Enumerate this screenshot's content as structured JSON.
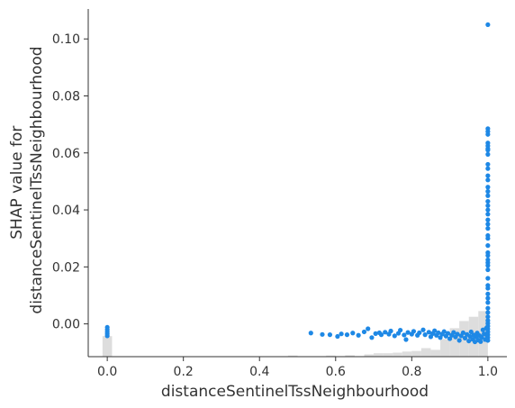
{
  "chart_data": {
    "type": "scatter",
    "title": "",
    "xlabel": "distanceSentinelTssNeighbourhood",
    "ylabel_lines": [
      "SHAP value for",
      "distanceSentinelTssNeighbourhood"
    ],
    "xlim": [
      -0.05,
      1.05
    ],
    "ylim": [
      -0.0115,
      0.1105
    ],
    "x_ticks": [
      0.0,
      0.2,
      0.4,
      0.6,
      0.8,
      1.0
    ],
    "x_tick_labels": [
      "0.0",
      "0.2",
      "0.4",
      "0.6",
      "0.8",
      "1.0"
    ],
    "y_ticks": [
      0.0,
      0.02,
      0.04,
      0.06,
      0.08,
      0.1
    ],
    "y_tick_labels": [
      "0.00",
      "0.02",
      "0.04",
      "0.06",
      "0.08",
      "0.10"
    ],
    "grid": false,
    "colors": {
      "points": "#1e88e5",
      "histogram": "#dddddd",
      "axes": "#333333"
    },
    "histogram": {
      "bin_width": 0.025,
      "bins": [
        {
          "x0": -0.0125,
          "height": 0.0072
        },
        {
          "x0": 0.475,
          "height": 0.0004
        },
        {
          "x0": 0.575,
          "height": 0.0004
        },
        {
          "x0": 0.625,
          "height": 0.0005
        },
        {
          "x0": 0.675,
          "height": 0.0008
        },
        {
          "x0": 0.7,
          "height": 0.0012
        },
        {
          "x0": 0.725,
          "height": 0.0012
        },
        {
          "x0": 0.75,
          "height": 0.0014
        },
        {
          "x0": 0.775,
          "height": 0.0018
        },
        {
          "x0": 0.8,
          "height": 0.002
        },
        {
          "x0": 0.825,
          "height": 0.003
        },
        {
          "x0": 0.85,
          "height": 0.0024
        },
        {
          "x0": 0.875,
          "height": 0.0062
        },
        {
          "x0": 0.9,
          "height": 0.01
        },
        {
          "x0": 0.925,
          "height": 0.0125
        },
        {
          "x0": 0.95,
          "height": 0.014
        },
        {
          "x0": 0.975,
          "height": 0.016
        }
      ]
    },
    "series": [
      {
        "points": [
          [
            0.0,
            -0.0012
          ],
          [
            0.0,
            -0.002
          ],
          [
            0.0,
            -0.0028
          ],
          [
            0.0,
            -0.0035
          ],
          [
            0.0,
            -0.0042
          ],
          [
            0.535,
            -0.0032
          ],
          [
            0.565,
            -0.0037
          ],
          [
            0.585,
            -0.0038
          ],
          [
            0.605,
            -0.0044
          ],
          [
            0.615,
            -0.0035
          ],
          [
            0.63,
            -0.0038
          ],
          [
            0.645,
            -0.0032
          ],
          [
            0.66,
            -0.004
          ],
          [
            0.675,
            -0.0028
          ],
          [
            0.685,
            -0.0017
          ],
          [
            0.695,
            -0.0048
          ],
          [
            0.705,
            -0.0034
          ],
          [
            0.715,
            -0.0031
          ],
          [
            0.72,
            -0.0038
          ],
          [
            0.73,
            -0.0029
          ],
          [
            0.74,
            -0.0036
          ],
          [
            0.745,
            -0.0025
          ],
          [
            0.755,
            -0.0042
          ],
          [
            0.765,
            -0.0033
          ],
          [
            0.77,
            -0.0022
          ],
          [
            0.78,
            -0.0039
          ],
          [
            0.785,
            -0.0055
          ],
          [
            0.79,
            -0.003
          ],
          [
            0.8,
            -0.0036
          ],
          [
            0.805,
            -0.0026
          ],
          [
            0.815,
            -0.004
          ],
          [
            0.82,
            -0.0031
          ],
          [
            0.83,
            -0.0021
          ],
          [
            0.835,
            -0.0038
          ],
          [
            0.845,
            -0.0029
          ],
          [
            0.85,
            -0.0045
          ],
          [
            0.855,
            -0.0034
          ],
          [
            0.86,
            -0.0024
          ],
          [
            0.865,
            -0.004
          ],
          [
            0.87,
            -0.0031
          ],
          [
            0.875,
            -0.0048
          ],
          [
            0.88,
            -0.0036
          ],
          [
            0.885,
            -0.0027
          ],
          [
            0.89,
            -0.0043
          ],
          [
            0.895,
            -0.0033
          ],
          [
            0.9,
            -0.0052
          ],
          [
            0.905,
            -0.004
          ],
          [
            0.91,
            -0.003
          ],
          [
            0.915,
            -0.0046
          ],
          [
            0.92,
            -0.0036
          ],
          [
            0.925,
            -0.0058
          ],
          [
            0.93,
            -0.0042
          ],
          [
            0.935,
            -0.0031
          ],
          [
            0.94,
            -0.005
          ],
          [
            0.945,
            -0.0037
          ],
          [
            0.95,
            -0.006
          ],
          [
            0.953,
            -0.0044
          ],
          [
            0.956,
            -0.0028
          ],
          [
            0.96,
            -0.0054
          ],
          [
            0.963,
            -0.0039
          ],
          [
            0.966,
            -0.0063
          ],
          [
            0.969,
            -0.0046
          ],
          [
            0.972,
            -0.0032
          ],
          [
            0.975,
            -0.0057
          ],
          [
            0.978,
            -0.0041
          ],
          [
            0.981,
            -0.0062
          ],
          [
            0.984,
            -0.0047
          ],
          [
            0.987,
            -0.0021
          ],
          [
            0.99,
            -0.0035
          ],
          [
            0.993,
            -0.0055
          ],
          [
            0.996,
            -0.0015
          ],
          [
            0.998,
            -0.0042
          ],
          [
            1.0,
            -0.0058
          ],
          [
            1.0,
            -0.0048
          ],
          [
            1.0,
            -0.0038
          ],
          [
            1.0,
            -0.0028
          ],
          [
            1.0,
            -0.0018
          ],
          [
            1.0,
            -0.0008
          ],
          [
            1.0,
            0.0002
          ],
          [
            1.0,
            0.0012
          ],
          [
            1.0,
            0.0025
          ],
          [
            1.0,
            0.004
          ],
          [
            1.0,
            0.0055
          ],
          [
            1.0,
            0.0075
          ],
          [
            1.0,
            0.009
          ],
          [
            1.0,
            0.0105
          ],
          [
            1.0,
            0.0125
          ],
          [
            1.0,
            0.0135
          ],
          [
            1.0,
            0.016
          ],
          [
            1.0,
            0.019
          ],
          [
            1.0,
            0.0205
          ],
          [
            1.0,
            0.0215
          ],
          [
            1.0,
            0.0225
          ],
          [
            1.0,
            0.024
          ],
          [
            1.0,
            0.025
          ],
          [
            1.0,
            0.0275
          ],
          [
            1.0,
            0.03
          ],
          [
            1.0,
            0.031
          ],
          [
            1.0,
            0.0335
          ],
          [
            1.0,
            0.035
          ],
          [
            1.0,
            0.0365
          ],
          [
            1.0,
            0.0385
          ],
          [
            1.0,
            0.04
          ],
          [
            1.0,
            0.0415
          ],
          [
            1.0,
            0.043
          ],
          [
            1.0,
            0.045
          ],
          [
            1.0,
            0.0465
          ],
          [
            1.0,
            0.048
          ],
          [
            1.0,
            0.0505
          ],
          [
            1.0,
            0.052
          ],
          [
            1.0,
            0.0545
          ],
          [
            1.0,
            0.056
          ],
          [
            1.0,
            0.0595
          ],
          [
            1.0,
            0.061
          ],
          [
            1.0,
            0.0615
          ],
          [
            1.0,
            0.0625
          ],
          [
            1.0,
            0.0635
          ],
          [
            1.0,
            0.0665
          ],
          [
            1.0,
            0.0675
          ],
          [
            1.0,
            0.0685
          ],
          [
            1.0,
            0.105
          ]
        ]
      }
    ]
  }
}
